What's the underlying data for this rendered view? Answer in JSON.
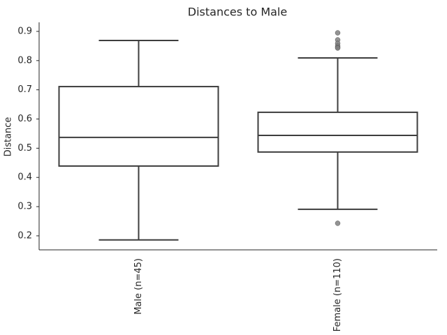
{
  "chart_data": {
    "type": "box",
    "title": "Distances to Male",
    "ylabel": "Distance",
    "categories": [
      "Male (n=45)",
      "Female (n=110)"
    ],
    "boxes": [
      {
        "whislo": 0.186,
        "q1": 0.439,
        "med": 0.537,
        "q3": 0.711,
        "whishi": 0.869,
        "fliers": []
      },
      {
        "whislo": 0.291,
        "q1": 0.487,
        "med": 0.544,
        "q3": 0.623,
        "whishi": 0.809,
        "fliers": [
          0.895,
          0.871,
          0.859,
          0.85,
          0.845,
          0.843,
          0.243
        ]
      }
    ],
    "color": "#3d3d3d",
    "flier_color": "#808080",
    "ylim": [
      0.152,
      0.931
    ],
    "yticks": [
      0.2,
      0.3,
      0.4,
      0.5,
      0.6,
      0.7,
      0.8,
      0.9
    ],
    "grid": false
  }
}
